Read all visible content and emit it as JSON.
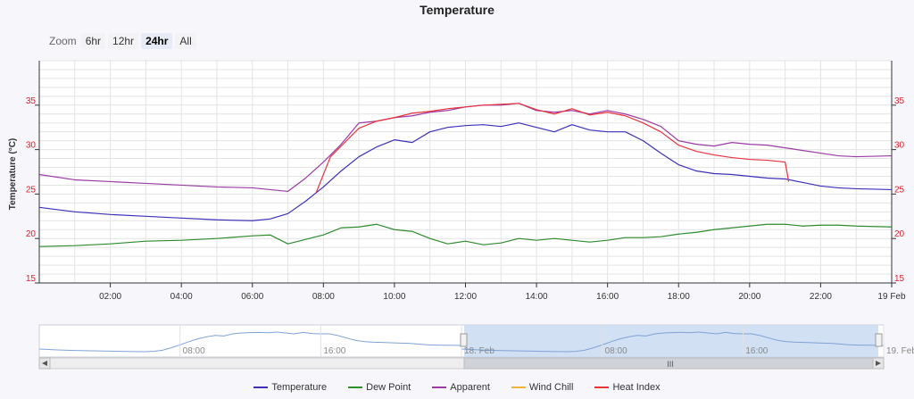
{
  "zoom": {
    "label": "Zoom",
    "buttons": [
      "6hr",
      "12hr",
      "24hr",
      "All"
    ],
    "selected": "24hr"
  },
  "chart_data": {
    "type": "line",
    "title": "Temperature",
    "ylabel": "Temperature (°C)",
    "xlabel": "",
    "ylim": [
      15,
      40
    ],
    "y_ticks": [
      15,
      20,
      25,
      30,
      35
    ],
    "xlim": [
      0,
      24
    ],
    "x_ticks": [
      {
        "x": 2,
        "label": "02:00"
      },
      {
        "x": 4,
        "label": "04:00"
      },
      {
        "x": 6,
        "label": "06:00"
      },
      {
        "x": 8,
        "label": "08:00"
      },
      {
        "x": 10,
        "label": "10:00"
      },
      {
        "x": 12,
        "label": "12:00"
      },
      {
        "x": 14,
        "label": "14:00"
      },
      {
        "x": 16,
        "label": "16:00"
      },
      {
        "x": 18,
        "label": "18:00"
      },
      {
        "x": 20,
        "label": "20:00"
      },
      {
        "x": 22,
        "label": "22:00"
      },
      {
        "x": 24,
        "label": "19 Feb"
      }
    ],
    "grid": true,
    "legend_position": "bottom-center",
    "series": [
      {
        "name": "Temperature",
        "color": "#3b30b8",
        "x": [
          0,
          1,
          2,
          3,
          4,
          5,
          6,
          6.5,
          7,
          7.5,
          8,
          8.5,
          9,
          9.5,
          10,
          10.5,
          11,
          11.5,
          12,
          12.5,
          13,
          13.5,
          14,
          14.5,
          15,
          15.5,
          16,
          16.5,
          17,
          17.5,
          18,
          18.5,
          19,
          19.5,
          20,
          20.5,
          21,
          21.5,
          22,
          22.5,
          23,
          24
        ],
        "y": [
          23.5,
          23,
          22.7,
          22.5,
          22.3,
          22.1,
          22,
          22.2,
          22.8,
          24.2,
          25.8,
          27.6,
          29.2,
          30.3,
          31.1,
          30.8,
          32.0,
          32.5,
          32.7,
          32.8,
          32.6,
          33.0,
          32.5,
          32.0,
          32.8,
          32.2,
          32.0,
          32.0,
          31.0,
          29.6,
          28.3,
          27.6,
          27.3,
          27.2,
          27.0,
          26.8,
          26.7,
          26.3,
          25.9,
          25.7,
          25.6,
          25.5
        ]
      },
      {
        "name": "Dew Point",
        "color": "#2e8b2e",
        "x": [
          0,
          1,
          2,
          3,
          4,
          5,
          6,
          6.5,
          7,
          7.5,
          8,
          8.5,
          9,
          9.5,
          10,
          10.5,
          11,
          11.5,
          12,
          12.5,
          13,
          13.5,
          14,
          14.5,
          15,
          15.5,
          16,
          16.5,
          17,
          17.5,
          18,
          18.5,
          19,
          19.5,
          20,
          20.5,
          21,
          21.5,
          22,
          22.5,
          23,
          24
        ],
        "y": [
          19.1,
          19.2,
          19.4,
          19.7,
          19.8,
          20.0,
          20.3,
          20.4,
          19.4,
          19.9,
          20.4,
          21.2,
          21.3,
          21.6,
          21.0,
          20.8,
          20.0,
          19.4,
          19.7,
          19.3,
          19.5,
          20.0,
          19.8,
          20.0,
          19.8,
          19.6,
          19.8,
          20.1,
          20.1,
          20.2,
          20.5,
          20.7,
          21.0,
          21.2,
          21.4,
          21.6,
          21.6,
          21.4,
          21.5,
          21.5,
          21.4,
          21.3
        ]
      },
      {
        "name": "Apparent",
        "color": "#9b3aa5",
        "x": [
          0,
          1,
          2,
          3,
          4,
          5,
          6,
          6.5,
          7,
          7.5,
          8,
          8.5,
          9,
          9.5,
          10,
          10.5,
          11,
          11.5,
          12,
          12.5,
          13,
          13.5,
          14,
          14.5,
          15,
          15.5,
          16,
          16.5,
          17,
          17.5,
          18,
          18.5,
          19,
          19.5,
          20,
          20.5,
          21,
          21.5,
          22,
          22.5,
          23,
          24
        ],
        "y": [
          27.2,
          26.6,
          26.4,
          26.2,
          26.0,
          25.8,
          25.7,
          25.5,
          25.3,
          26.8,
          28.6,
          30.6,
          33.0,
          33.2,
          33.6,
          33.8,
          34.2,
          34.4,
          34.8,
          35.0,
          35.0,
          35.2,
          34.4,
          34.2,
          34.4,
          34.0,
          34.4,
          34.0,
          33.4,
          32.6,
          31.0,
          30.6,
          30.4,
          30.8,
          30.6,
          30.5,
          30.2,
          29.9,
          29.6,
          29.3,
          29.2,
          29.3
        ]
      },
      {
        "name": "Wind Chill",
        "color": "#f0b23c",
        "x": [],
        "y": []
      },
      {
        "name": "Heat Index",
        "color": "#e8323c",
        "x": [
          7.8,
          8.2,
          8.5,
          9,
          9.5,
          10,
          10.5,
          11,
          11.5,
          12,
          12.5,
          13,
          13.5,
          14,
          14.5,
          15,
          15.5,
          16,
          16.5,
          17,
          17.5,
          18,
          18.5,
          19,
          19.5,
          20,
          20.5,
          21,
          21.1
        ],
        "y": [
          25.2,
          29.2,
          30.4,
          32.4,
          33.2,
          33.6,
          34.1,
          34.3,
          34.6,
          34.8,
          35.0,
          35.1,
          35.2,
          34.5,
          34.0,
          34.6,
          33.9,
          34.2,
          33.8,
          33.0,
          32.0,
          30.5,
          29.8,
          29.4,
          29.1,
          28.9,
          28.8,
          28.6,
          26.4
        ]
      }
    ],
    "navigator": {
      "x_ticks": [
        {
          "x": 8,
          "label": "08:00"
        },
        {
          "x": 16,
          "label": "16:00"
        },
        {
          "x": 24,
          "label": "18. Feb"
        },
        {
          "x": 32,
          "label": "08:00"
        },
        {
          "x": 40,
          "label": "16:00"
        },
        {
          "x": 48,
          "label": "19. Feb"
        }
      ]
    }
  }
}
